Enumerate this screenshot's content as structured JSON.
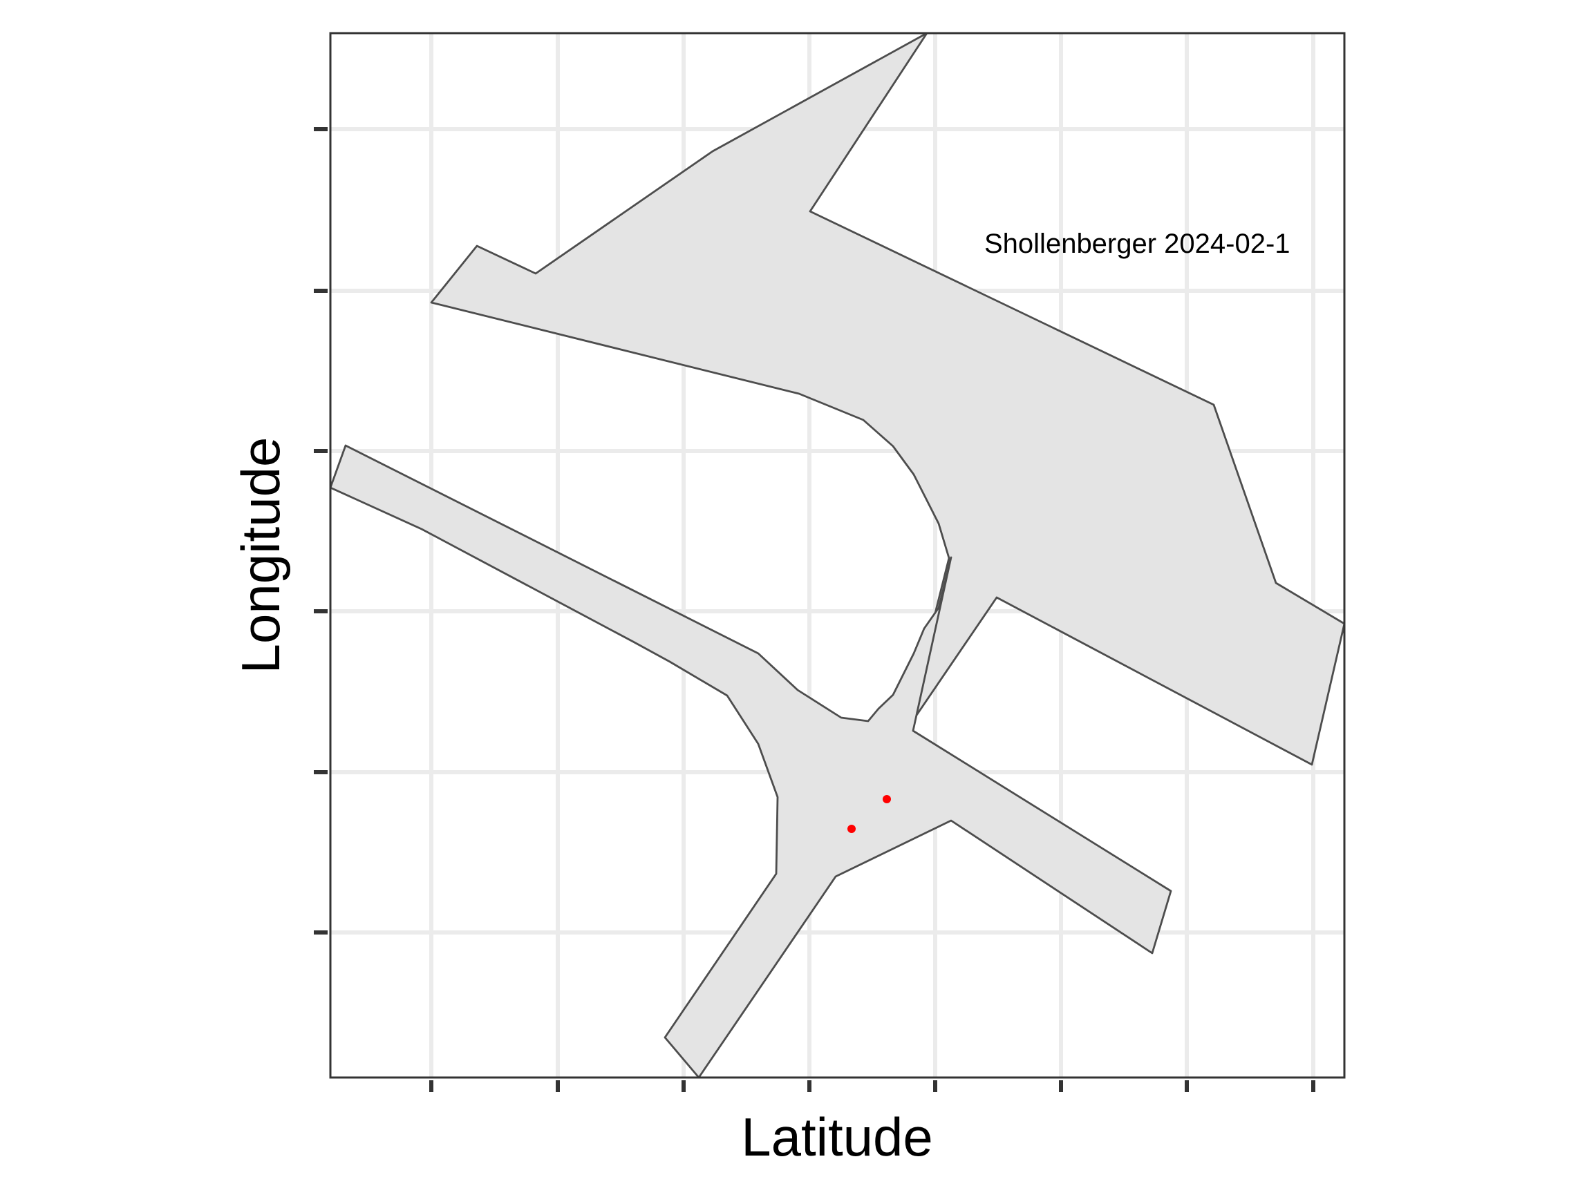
{
  "chart_data": {
    "type": "map",
    "xlabel": "Latitude",
    "ylabel": "Longitude",
    "annotation": "Shollenberger 2024-02-1",
    "grid": true,
    "x_tick_labels_shown": false,
    "y_tick_labels_shown": false,
    "x_tick_count": 8,
    "y_tick_count": 6,
    "footprint_fill": "#e4e4e4",
    "footprint_outline": "#4d4d4d",
    "points": [
      {
        "label": "sample-point-1",
        "color": "#ff0000"
      },
      {
        "label": "sample-point-2",
        "color": "#ff0000"
      }
    ]
  }
}
